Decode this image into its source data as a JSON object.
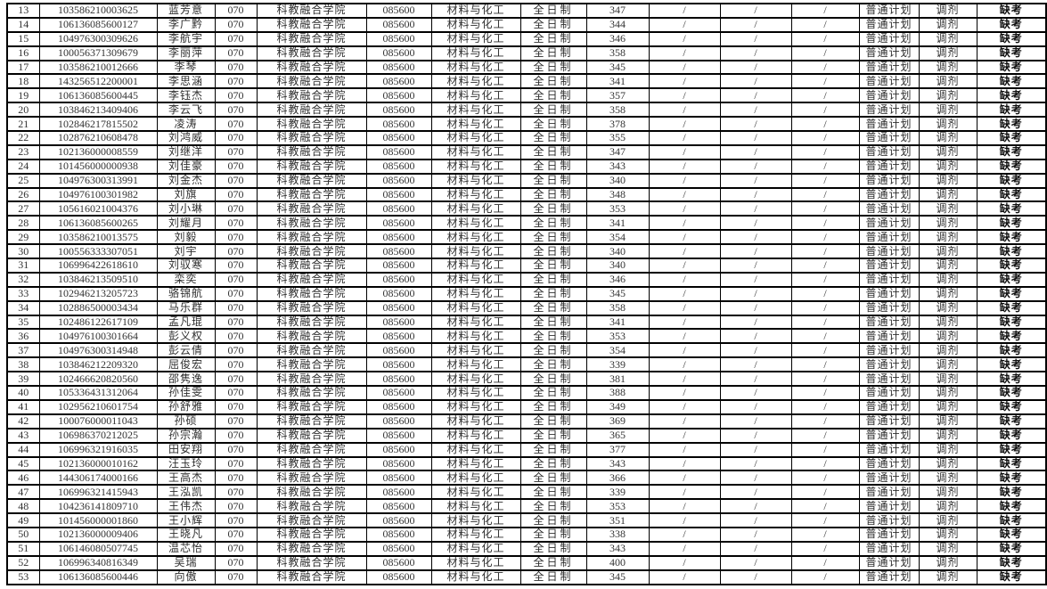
{
  "colors": {
    "background": "#ffffff",
    "grid_line": "#000000",
    "text": "#333333",
    "remark_text": "#0f0f0f"
  },
  "table": {
    "description": "scrolled view of an admissions result list, rows 13-53, no header visible",
    "repeated_values": {
      "college_code": "070",
      "college_name": "科教融合学院",
      "major_code": "085600",
      "major_name": "材料与化工",
      "study_mode": "全日制",
      "slash": "/",
      "plan_type": "普通计划",
      "admission_channel": "调剂",
      "remark": "缺考"
    },
    "rows": [
      {
        "no": "13",
        "id": "103586210003625",
        "name": "蓝芳意",
        "score": "347"
      },
      {
        "no": "14",
        "id": "106136085600127",
        "name": "李广黔",
        "score": "344"
      },
      {
        "no": "15",
        "id": "104976300309626",
        "name": "李航宇",
        "score": "346"
      },
      {
        "no": "16",
        "id": "100056371309679",
        "name": "李丽萍",
        "score": "358"
      },
      {
        "no": "17",
        "id": "103586210012666",
        "name": "李琴",
        "score": "345"
      },
      {
        "no": "18",
        "id": "143256512200001",
        "name": "李思涵",
        "score": "341"
      },
      {
        "no": "19",
        "id": "106136085600445",
        "name": "李钰杰",
        "score": "357"
      },
      {
        "no": "20",
        "id": "103846213409406",
        "name": "李云飞",
        "score": "358"
      },
      {
        "no": "21",
        "id": "102846217815502",
        "name": "凌涛",
        "score": "378"
      },
      {
        "no": "22",
        "id": "102876210608478",
        "name": "刘鸿威",
        "score": "355"
      },
      {
        "no": "23",
        "id": "102136000008559",
        "name": "刘继洋",
        "score": "347"
      },
      {
        "no": "24",
        "id": "101456000000938",
        "name": "刘佳豪",
        "score": "343"
      },
      {
        "no": "25",
        "id": "104976300313991",
        "name": "刘金杰",
        "score": "340"
      },
      {
        "no": "26",
        "id": "104976100301982",
        "name": "刘旗",
        "score": "348"
      },
      {
        "no": "27",
        "id": "105616021004376",
        "name": "刘小琳",
        "score": "353"
      },
      {
        "no": "28",
        "id": "106136085600265",
        "name": "刘耀月",
        "score": "341"
      },
      {
        "no": "29",
        "id": "103586210013575",
        "name": "刘毅",
        "score": "354"
      },
      {
        "no": "30",
        "id": "100556333307051",
        "name": "刘宇",
        "score": "340"
      },
      {
        "no": "31",
        "id": "106996422618610",
        "name": "刘驭寒",
        "score": "340"
      },
      {
        "no": "32",
        "id": "103846213509510",
        "name": "栾奕",
        "score": "346"
      },
      {
        "no": "33",
        "id": "102946213205723",
        "name": "骆锦航",
        "score": "345"
      },
      {
        "no": "34",
        "id": "102886500003434",
        "name": "马乐群",
        "score": "358"
      },
      {
        "no": "35",
        "id": "102486122617109",
        "name": "孟凡琨",
        "score": "341"
      },
      {
        "no": "36",
        "id": "104976100301664",
        "name": "彭义权",
        "score": "353"
      },
      {
        "no": "37",
        "id": "104976300314948",
        "name": "彭云倩",
        "score": "354"
      },
      {
        "no": "38",
        "id": "103846212209320",
        "name": "屈俊宏",
        "score": "339"
      },
      {
        "no": "39",
        "id": "102466620820560",
        "name": "邵隽逸",
        "score": "381"
      },
      {
        "no": "40",
        "id": "105336431312064",
        "name": "孙佳雯",
        "score": "388"
      },
      {
        "no": "41",
        "id": "102956210601754",
        "name": "孙舒雅",
        "score": "349"
      },
      {
        "no": "42",
        "id": "100076000011043",
        "name": "孙硕",
        "score": "369"
      },
      {
        "no": "43",
        "id": "106986370212025",
        "name": "孙宗瀚",
        "score": "365"
      },
      {
        "no": "44",
        "id": "106996321916035",
        "name": "田安翔",
        "score": "377"
      },
      {
        "no": "45",
        "id": "102136000010162",
        "name": "汪玉玲",
        "score": "343"
      },
      {
        "no": "46",
        "id": "144306174000166",
        "name": "王高杰",
        "score": "366"
      },
      {
        "no": "47",
        "id": "106996321415943",
        "name": "王泓凯",
        "score": "339"
      },
      {
        "no": "48",
        "id": "104236141809710",
        "name": "王伟杰",
        "score": "353"
      },
      {
        "no": "49",
        "id": "101456000001860",
        "name": "王小辉",
        "score": "351"
      },
      {
        "no": "50",
        "id": "102136000009406",
        "name": "王晓凡",
        "score": "338"
      },
      {
        "no": "51",
        "id": "106146080507745",
        "name": "温芯怡",
        "score": "343"
      },
      {
        "no": "52",
        "id": "106996340816349",
        "name": "吴瑞",
        "score": "400"
      },
      {
        "no": "53",
        "id": "106136085600446",
        "name": "向傲",
        "score": "345"
      }
    ]
  }
}
